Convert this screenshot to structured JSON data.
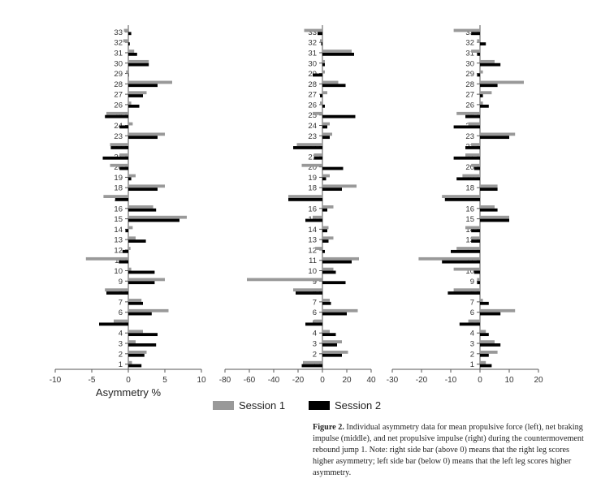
{
  "chart_data": [
    {
      "type": "bar",
      "orientation": "horizontal",
      "categories": [
        1,
        2,
        3,
        4,
        5,
        6,
        7,
        8,
        9,
        10,
        11,
        12,
        13,
        14,
        15,
        16,
        17,
        18,
        19,
        20,
        21,
        22,
        23,
        24,
        25,
        26,
        27,
        28,
        29,
        30,
        31,
        32,
        33
      ],
      "xlim": [
        -10,
        10
      ],
      "xticks": [
        -10,
        -5,
        0,
        5,
        10
      ],
      "xlabel": "Asymmetry %",
      "series": [
        {
          "name": "Session 1",
          "color": "#999999",
          "values": [
            0.5,
            2.5,
            1.0,
            2.0,
            -2.0,
            5.5,
            1.8,
            -3.2,
            5.0,
            0.4,
            -5.8,
            0.3,
            1.0,
            0.6,
            8.0,
            3.4,
            -3.4,
            5.0,
            1.0,
            -2.5,
            -1.2,
            -2.5,
            5.0,
            0.6,
            -3.0,
            0.4,
            2.5,
            6.0,
            -0.3,
            2.8,
            0.8,
            -0.7,
            -0.6
          ]
        },
        {
          "name": "Session 2",
          "color": "#000000",
          "values": [
            1.8,
            2.2,
            3.8,
            4.0,
            -4.0,
            3.2,
            2.0,
            -3.0,
            3.6,
            3.6,
            -1.3,
            -0.8,
            2.4,
            -0.4,
            7.0,
            3.8,
            -1.8,
            4.0,
            0.4,
            -1.2,
            -3.5,
            -2.4,
            4.0,
            -1.2,
            -3.2,
            1.5,
            2.0,
            4.0,
            0.0,
            2.8,
            1.2,
            0.2,
            0.4
          ]
        }
      ]
    },
    {
      "type": "bar",
      "orientation": "horizontal",
      "categories": [
        1,
        2,
        3,
        4,
        5,
        6,
        7,
        8,
        9,
        10,
        11,
        12,
        13,
        14,
        15,
        16,
        17,
        18,
        19,
        20,
        21,
        22,
        23,
        24,
        25,
        26,
        27,
        28,
        29,
        30,
        31,
        32,
        33
      ],
      "xlim": [
        -80,
        40
      ],
      "xticks": [
        -80,
        -60,
        -40,
        -20,
        0,
        20,
        40
      ],
      "xlabel": "",
      "series": [
        {
          "name": "Session 1",
          "color": "#999999",
          "values": [
            -16,
            21,
            16,
            6,
            -7,
            29,
            6,
            -24,
            -62,
            9,
            30,
            -6,
            9,
            5,
            -8,
            9,
            -28,
            28,
            6,
            -17,
            -7,
            -21,
            8,
            6,
            -8,
            -2,
            4,
            13,
            2,
            2,
            24,
            -2,
            -15
          ]
        },
        {
          "name": "Session 2",
          "color": "#000000",
          "values": [
            -17,
            16,
            12,
            11,
            -14,
            20,
            7,
            -22,
            19,
            11,
            24,
            2,
            5,
            4,
            -14,
            4,
            -28,
            16,
            3,
            17,
            -7,
            -24,
            6,
            4,
            27,
            2,
            -2,
            19,
            -8,
            2,
            26,
            -1,
            -4
          ]
        }
      ]
    },
    {
      "type": "bar",
      "orientation": "horizontal",
      "categories": [
        1,
        2,
        3,
        4,
        5,
        6,
        7,
        8,
        9,
        10,
        11,
        12,
        13,
        14,
        15,
        16,
        17,
        18,
        19,
        20,
        21,
        22,
        23,
        24,
        25,
        26,
        27,
        28,
        29,
        30,
        31,
        32,
        33
      ],
      "xlim": [
        -30,
        20
      ],
      "xticks": [
        -30,
        -20,
        -10,
        0,
        10,
        20
      ],
      "xlabel": "",
      "series": [
        {
          "name": "Session 1",
          "color": "#999999",
          "values": [
            2,
            6,
            5,
            2,
            -4,
            12,
            1,
            -9,
            -1,
            -9,
            -21,
            -8,
            -3,
            -5,
            10,
            5,
            -13,
            6,
            -6,
            -3,
            -5,
            -3,
            12,
            -4,
            -8,
            1,
            4,
            15,
            1,
            5,
            -3,
            -1,
            -9
          ]
        },
        {
          "name": "Session 2",
          "color": "#000000",
          "values": [
            4,
            3,
            7,
            3,
            -7,
            7,
            3,
            -11,
            -1,
            -2,
            -13,
            -10,
            -3,
            -3,
            10,
            6,
            -12,
            6,
            -8,
            -2,
            -9,
            -5,
            10,
            -9,
            -5,
            3,
            1,
            6,
            -1,
            7,
            -1,
            2,
            -3
          ]
        }
      ]
    }
  ],
  "legend": [
    {
      "label": "Session 1",
      "color": "#999999"
    },
    {
      "label": "Session 2",
      "color": "#000000"
    }
  ],
  "caption": {
    "label": "Figure 2.",
    "text": "Individual asymmetry data for mean propulsive force (left), net braking impulse (middle), and net propulsive impulse (right) during the countermovement rebound jump 1. Note: right side bar (above 0) means that the right leg scores higher asymmetry; left side bar (below 0) means that the left leg scores higher asymmetry."
  }
}
